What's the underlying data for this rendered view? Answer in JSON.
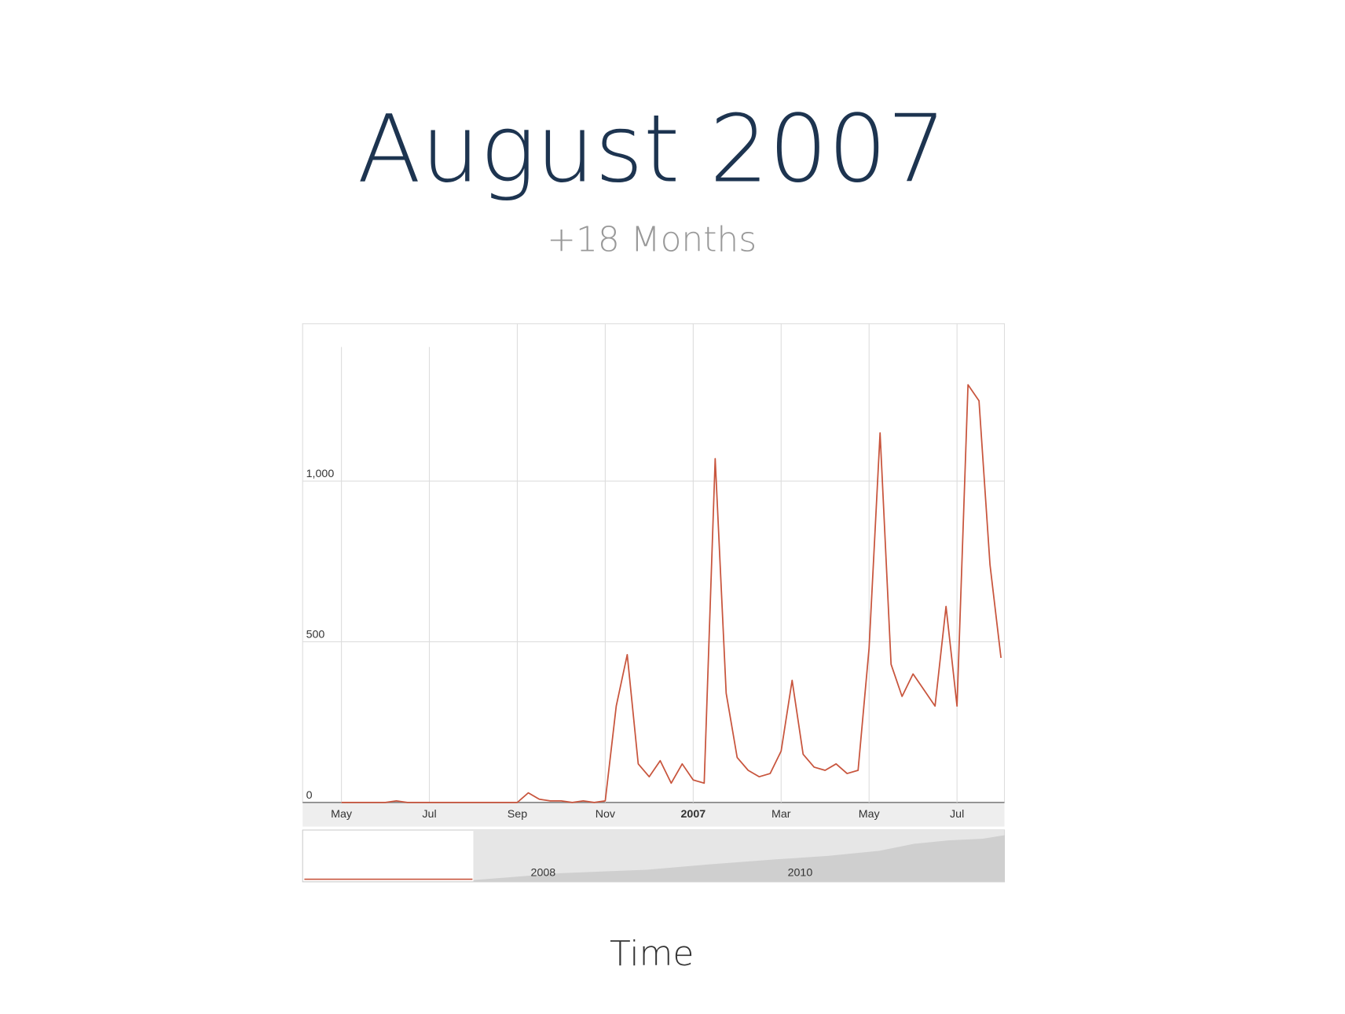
{
  "chart_data": {
    "type": "line",
    "title": "August 2007",
    "subtitle": "+18 Months",
    "x_label": "Time",
    "categories": [
      "May",
      null,
      null,
      null,
      null,
      null,
      null,
      null,
      "Jul",
      null,
      null,
      null,
      null,
      null,
      null,
      null,
      "Sep",
      null,
      null,
      null,
      null,
      null,
      null,
      null,
      "Nov",
      null,
      null,
      null,
      null,
      null,
      null,
      null,
      "2007",
      null,
      null,
      null,
      null,
      null,
      null,
      null,
      "Mar",
      null,
      null,
      null,
      null,
      null,
      null,
      null,
      "May",
      null,
      null,
      null,
      null,
      null,
      null,
      null,
      "Jul",
      null,
      null,
      null,
      null
    ],
    "values": [
      0,
      0,
      0,
      0,
      0,
      5,
      0,
      0,
      0,
      0,
      0,
      0,
      0,
      0,
      0,
      0,
      0,
      30,
      10,
      5,
      5,
      0,
      5,
      0,
      5,
      300,
      460,
      120,
      80,
      130,
      60,
      120,
      70,
      60,
      1070,
      340,
      140,
      100,
      80,
      90,
      160,
      380,
      150,
      110,
      100,
      120,
      90,
      100,
      480,
      1150,
      430,
      330,
      400,
      350,
      300,
      610,
      300,
      1300,
      1250,
      740,
      450
    ],
    "color": "#c8553d",
    "ylim": [
      0,
      1490
    ],
    "yticks": [
      0,
      500,
      {
        "value": 1000,
        "label": "1,000"
      }
    ],
    "grid": true,
    "navigator_labels": [
      "2008",
      "2010"
    ]
  }
}
